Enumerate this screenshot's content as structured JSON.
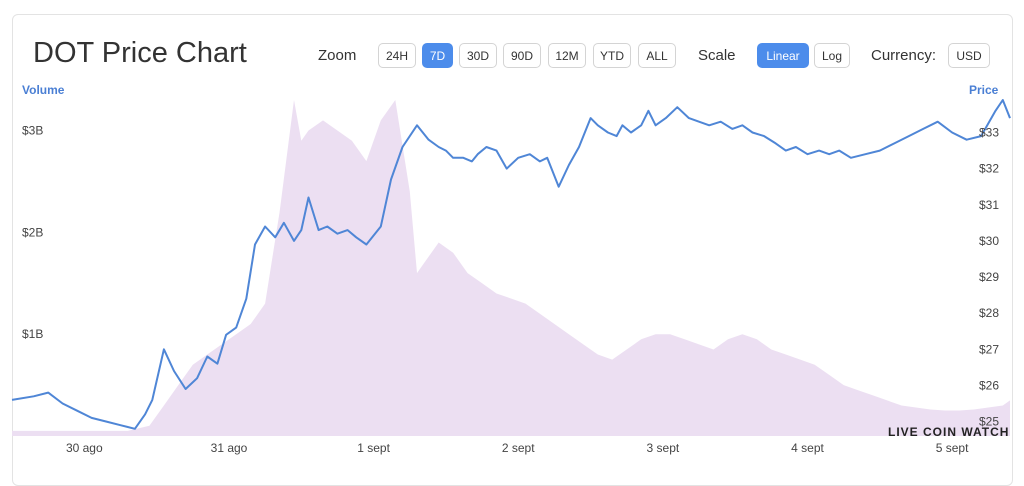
{
  "header": {
    "title": "DOT Price Chart",
    "zoom_label": "Zoom",
    "zoom_options": [
      "24H",
      "7D",
      "30D",
      "90D",
      "12M",
      "YTD",
      "ALL"
    ],
    "zoom_selected": "7D",
    "scale_label": "Scale",
    "scale_options": [
      "Linear",
      "Log"
    ],
    "scale_selected": "Linear",
    "currency_label": "Currency:",
    "currency_value": "USD"
  },
  "colors": {
    "accent": "#4c8ceb",
    "price_line": "#4f86d6",
    "volume_fill": "#ecdff2"
  },
  "watermark": "LIVE COIN WATCH",
  "chart_data": {
    "type": "line",
    "left_axis_title": "Volume",
    "right_axis_title": "Price",
    "volume_ticks": [
      "$1B",
      "$2B",
      "$3B"
    ],
    "volume_tick_values": [
      1,
      2,
      3
    ],
    "price_ticks": [
      "$25",
      "$26",
      "$27",
      "$28",
      "$29",
      "$30",
      "$31",
      "$32",
      "$33"
    ],
    "price_tick_values": [
      25,
      26,
      27,
      28,
      29,
      30,
      31,
      32,
      33
    ],
    "x_ticks": [
      "30 ago",
      "31 ago",
      "1 sept",
      "2 sept",
      "3 sept",
      "4 sept",
      "5 sept"
    ],
    "x_tick_values": [
      0,
      1,
      2,
      3,
      4,
      5,
      6
    ],
    "x_range": [
      -0.5,
      6.4
    ],
    "volume_range": [
      0,
      3.3
    ],
    "price_range": [
      24.6,
      33.9
    ],
    "grid": false,
    "series": [
      {
        "name": "Price",
        "x": [
          -0.5,
          -0.35,
          -0.25,
          -0.15,
          -0.05,
          0.05,
          0.15,
          0.25,
          0.35,
          0.42,
          0.47,
          0.55,
          0.62,
          0.7,
          0.78,
          0.85,
          0.92,
          0.98,
          1.05,
          1.12,
          1.18,
          1.25,
          1.32,
          1.38,
          1.45,
          1.5,
          1.55,
          1.62,
          1.68,
          1.75,
          1.82,
          1.88,
          1.95,
          2.05,
          2.12,
          2.2,
          2.3,
          2.38,
          2.45,
          2.5,
          2.55,
          2.62,
          2.68,
          2.72,
          2.78,
          2.85,
          2.92,
          3.0,
          3.08,
          3.15,
          3.2,
          3.28,
          3.35,
          3.42,
          3.5,
          3.55,
          3.62,
          3.68,
          3.72,
          3.78,
          3.85,
          3.9,
          3.95,
          4.02,
          4.1,
          4.18,
          4.25,
          4.32,
          4.4,
          4.48,
          4.55,
          4.62,
          4.7,
          4.78,
          4.85,
          4.92,
          5.0,
          5.08,
          5.15,
          5.22,
          5.3,
          5.4,
          5.5,
          5.6,
          5.7,
          5.8,
          5.9,
          6.0,
          6.1,
          6.2,
          6.3,
          6.35,
          6.4
        ],
        "values": [
          25.6,
          25.7,
          25.8,
          25.5,
          25.3,
          25.1,
          25.0,
          24.9,
          24.8,
          25.2,
          25.6,
          27.0,
          26.4,
          25.9,
          26.2,
          26.8,
          26.6,
          27.4,
          27.6,
          28.4,
          29.9,
          30.4,
          30.1,
          30.5,
          30.0,
          30.3,
          31.2,
          30.3,
          30.4,
          30.2,
          30.3,
          30.1,
          29.9,
          30.4,
          31.7,
          32.6,
          33.2,
          32.8,
          32.6,
          32.5,
          32.3,
          32.3,
          32.2,
          32.4,
          32.6,
          32.5,
          32.0,
          32.3,
          32.4,
          32.2,
          32.3,
          31.5,
          32.1,
          32.6,
          33.4,
          33.2,
          33.0,
          32.9,
          33.2,
          33.0,
          33.2,
          33.6,
          33.2,
          33.4,
          33.7,
          33.4,
          33.3,
          33.2,
          33.3,
          33.1,
          33.2,
          33.0,
          32.9,
          32.7,
          32.5,
          32.6,
          32.4,
          32.5,
          32.4,
          32.5,
          32.3,
          32.4,
          32.5,
          32.7,
          32.9,
          33.1,
          33.3,
          33.0,
          32.8,
          32.9,
          33.6,
          33.9,
          33.4
        ]
      },
      {
        "name": "Volume",
        "x": [
          -0.5,
          -0.3,
          -0.1,
          0.1,
          0.3,
          0.45,
          0.55,
          0.65,
          0.75,
          0.85,
          0.95,
          1.05,
          1.15,
          1.25,
          1.35,
          1.45,
          1.5,
          1.55,
          1.65,
          1.75,
          1.85,
          1.95,
          2.05,
          2.15,
          2.25,
          2.3,
          2.35,
          2.45,
          2.55,
          2.65,
          2.75,
          2.85,
          2.95,
          3.05,
          3.15,
          3.25,
          3.35,
          3.45,
          3.55,
          3.65,
          3.75,
          3.85,
          3.95,
          4.05,
          4.15,
          4.25,
          4.35,
          4.45,
          4.55,
          4.65,
          4.75,
          4.85,
          4.95,
          5.05,
          5.15,
          5.25,
          5.35,
          5.45,
          5.55,
          5.65,
          5.75,
          5.85,
          5.95,
          6.05,
          6.15,
          6.25,
          6.35,
          6.4
        ],
        "values": [
          0.05,
          0.05,
          0.05,
          0.05,
          0.05,
          0.1,
          0.3,
          0.5,
          0.7,
          0.8,
          0.9,
          1.0,
          1.1,
          1.3,
          2.2,
          3.3,
          2.9,
          3.0,
          3.1,
          3.0,
          2.9,
          2.7,
          3.1,
          3.3,
          2.4,
          1.6,
          1.7,
          1.9,
          1.8,
          1.6,
          1.5,
          1.4,
          1.35,
          1.3,
          1.2,
          1.1,
          1.0,
          0.9,
          0.8,
          0.75,
          0.85,
          0.95,
          1.0,
          1.0,
          0.95,
          0.9,
          0.85,
          0.95,
          1.0,
          0.95,
          0.85,
          0.8,
          0.75,
          0.7,
          0.6,
          0.5,
          0.45,
          0.4,
          0.35,
          0.3,
          0.28,
          0.26,
          0.25,
          0.25,
          0.26,
          0.28,
          0.3,
          0.35
        ]
      }
    ]
  }
}
